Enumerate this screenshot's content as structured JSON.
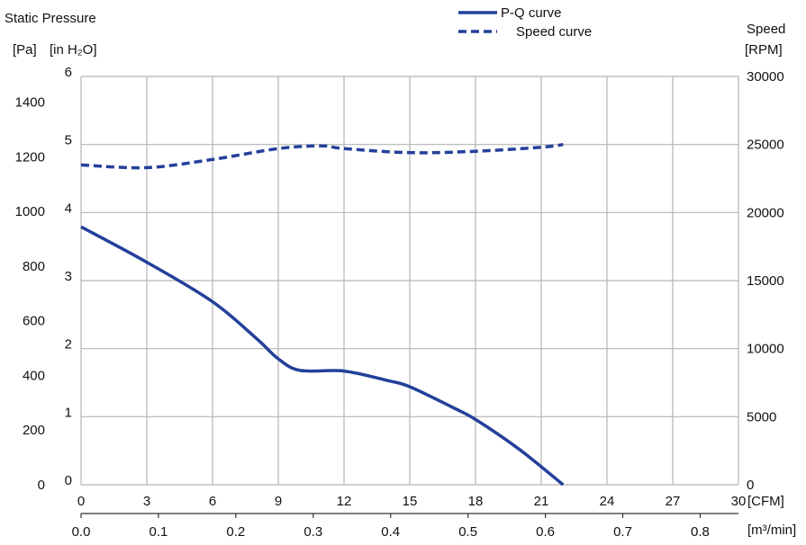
{
  "chart_data": {
    "type": "line",
    "left_axis_title": "Static Pressure",
    "left_units": {
      "pa": "[Pa]",
      "inh2o": "[in H₂O]"
    },
    "right_axis_title": "Speed",
    "right_unit": "[RPM]",
    "x_unit_cfm": "[CFM]",
    "x_unit_m3": "[m³/min]",
    "x_cfm_ticks": [
      "0",
      "3",
      "6",
      "9",
      "12",
      "15",
      "18",
      "21",
      "24",
      "27",
      "30"
    ],
    "x_m3_ticks": [
      "0.0",
      "0.1",
      "0.2",
      "0.3",
      "0.4",
      "0.5",
      "0.6",
      "0.7",
      "0.8"
    ],
    "y_pa_ticks": [
      "0",
      "200",
      "400",
      "600",
      "800",
      "1000",
      "1200",
      "1400"
    ],
    "y_inh2o_ticks": [
      "0",
      "1",
      "2",
      "3",
      "4",
      "5",
      "6"
    ],
    "y_rpm_ticks": [
      "0",
      "5000",
      "10000",
      "15000",
      "20000",
      "25000",
      "30000"
    ],
    "xlim_cfm": [
      0,
      30
    ],
    "ylim_inh2o": [
      0,
      6
    ],
    "ylim_rpm": [
      0,
      30000
    ],
    "grid": true,
    "legend_position": "top-center",
    "series": [
      {
        "name": "P-Q curve",
        "axis": "left",
        "style": "solid",
        "color": "#23409a",
        "x": [
          0,
          3,
          6,
          8,
          9,
          10,
          12,
          14,
          15,
          17,
          18,
          20,
          22
        ],
        "y": [
          3.79,
          3.27,
          2.69,
          2.15,
          1.85,
          1.68,
          1.67,
          1.53,
          1.44,
          1.13,
          0.96,
          0.52,
          0
        ]
      },
      {
        "name": "Speed curve",
        "axis": "right",
        "style": "dashed",
        "color": "#23409a",
        "x": [
          0,
          3,
          6,
          9,
          11,
          12,
          15,
          18,
          21,
          22
        ],
        "y": [
          23500,
          23300,
          23900,
          24700,
          24900,
          24700,
          24400,
          24500,
          24800,
          25000
        ]
      }
    ]
  }
}
